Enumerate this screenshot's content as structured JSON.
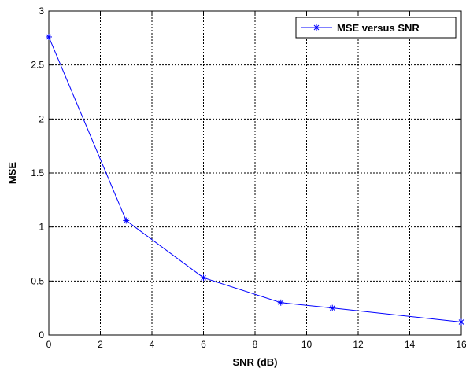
{
  "chart_data": {
    "type": "line",
    "xlabel": "SNR (dB)",
    "ylabel": "MSE",
    "xlim": [
      0,
      16
    ],
    "ylim": [
      0,
      3
    ],
    "xticks": [
      0,
      2,
      4,
      6,
      8,
      10,
      12,
      14,
      16
    ],
    "yticks": [
      0,
      0.5,
      1,
      1.5,
      2,
      2.5,
      3
    ],
    "xtick_labels": [
      "0",
      "2",
      "4",
      "6",
      "8",
      "10",
      "12",
      "14",
      "16"
    ],
    "ytick_labels": [
      "0",
      "0.5",
      "1",
      "1.5",
      "2",
      "2.5",
      "3"
    ],
    "grid": true,
    "legend_position": "top-right",
    "series": [
      {
        "name": "MSE versus SNR",
        "color": "#0000ff",
        "marker": "asterisk",
        "x": [
          0,
          3,
          6,
          9,
          11,
          16
        ],
        "y": [
          2.76,
          1.06,
          0.53,
          0.3,
          0.25,
          0.12
        ]
      }
    ]
  }
}
